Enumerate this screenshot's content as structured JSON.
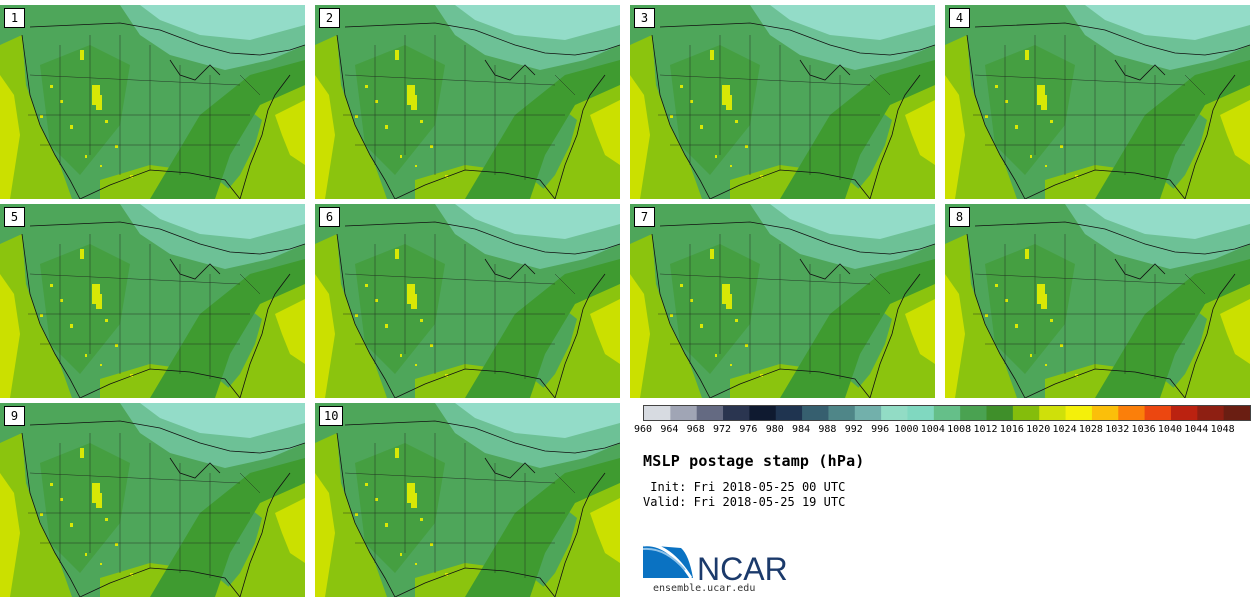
{
  "panels": [
    {
      "label": "1"
    },
    {
      "label": "2"
    },
    {
      "label": "3"
    },
    {
      "label": "4"
    },
    {
      "label": "5"
    },
    {
      "label": "6"
    },
    {
      "label": "7"
    },
    {
      "label": "8"
    },
    {
      "label": "9"
    },
    {
      "label": "10"
    }
  ],
  "colorbar": {
    "levels": [
      "960",
      "964",
      "968",
      "972",
      "976",
      "980",
      "984",
      "988",
      "992",
      "996",
      "1000",
      "1004",
      "1008",
      "1012",
      "1016",
      "1020",
      "1024",
      "1028",
      "1032",
      "1036",
      "1040",
      "1044",
      "1048"
    ],
    "colors": [
      "#d7dbe1",
      "#a0a5b5",
      "#646a82",
      "#2a3550",
      "#0f1a30",
      "#1f3450",
      "#365f6f",
      "#4f8688",
      "#72b0ab",
      "#92dcc5",
      "#80d8c0",
      "#65bf89",
      "#4aa251",
      "#3f8f2a",
      "#84bd0c",
      "#cfe00a",
      "#f4f00a",
      "#fbbf0a",
      "#fb7f0a",
      "#ec4710",
      "#bb2210",
      "#8e1f12",
      "#6a1e12"
    ]
  },
  "title": "MSLP postage stamp (hPa)",
  "init_line": " Init: Fri 2018-05-25 00 UTC",
  "valid_line": "Valid: Fri 2018-05-25 19 UTC",
  "logo": {
    "text": "NCAR",
    "url": "ensemble.ucar.edu"
  },
  "palette": {
    "ocean_high": "#cbe000",
    "ocean_mid": "#8bc40e",
    "land_low": "#3f9b30",
    "land_mid": "#4ea65a",
    "land_high": "#6dc196",
    "north": "#93dcc8",
    "terrain": "#d8e806"
  }
}
